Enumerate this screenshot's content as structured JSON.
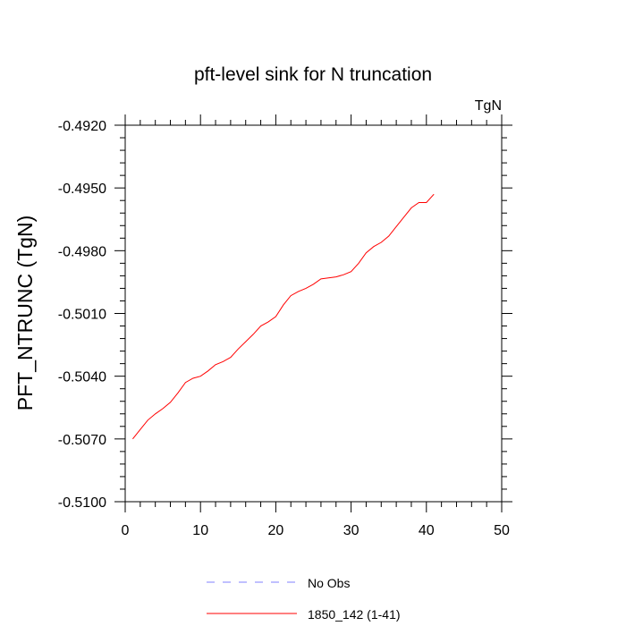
{
  "chart_data": {
    "type": "line",
    "title": "pft-level sink for N truncation",
    "units_label": "TgN",
    "ylabel": "PFT_NTRUNC  (TgN)",
    "xlabel": "",
    "xlim": [
      0,
      50
    ],
    "ylim": [
      -0.51,
      -0.492
    ],
    "x_ticks": [
      0,
      10,
      20,
      30,
      40,
      50
    ],
    "x_tick_labels": [
      "0",
      "10",
      "20",
      "30",
      "40",
      "50"
    ],
    "y_ticks": [
      -0.51,
      -0.507,
      -0.504,
      -0.501,
      -0.498,
      -0.495,
      -0.492
    ],
    "y_tick_labels": [
      "-0.5100",
      "-0.5070",
      "-0.5040",
      "-0.5010",
      "-0.4980",
      "-0.4950",
      "-0.4920"
    ],
    "grid": false,
    "legend_position": "bottom",
    "series": [
      {
        "name": "1850_142 (1-41)",
        "color": "#ff0000",
        "style": "solid",
        "x": [
          1,
          2,
          3,
          4,
          5,
          6,
          7,
          8,
          9,
          10,
          11,
          12,
          13,
          14,
          15,
          16,
          17,
          18,
          19,
          20,
          21,
          22,
          23,
          24,
          25,
          26,
          27,
          28,
          29,
          30,
          31,
          32,
          33,
          34,
          35,
          36,
          37,
          38,
          39,
          40,
          41
        ],
        "y": [
          -0.507,
          -0.50655,
          -0.5061,
          -0.5058,
          -0.50555,
          -0.50525,
          -0.5048,
          -0.5043,
          -0.5041,
          -0.504,
          -0.50375,
          -0.50345,
          -0.5033,
          -0.5031,
          -0.5027,
          -0.50235,
          -0.502,
          -0.5016,
          -0.5014,
          -0.50115,
          -0.5006,
          -0.50015,
          -0.49995,
          -0.4998,
          -0.4996,
          -0.49935,
          -0.4993,
          -0.49925,
          -0.49915,
          -0.499,
          -0.4986,
          -0.4981,
          -0.4978,
          -0.4976,
          -0.4973,
          -0.49685,
          -0.4964,
          -0.49595,
          -0.4957,
          -0.4957,
          -0.4953
        ]
      },
      {
        "name": "No Obs",
        "color": "#8080ff",
        "style": "dashed",
        "x": [],
        "y": []
      }
    ]
  }
}
